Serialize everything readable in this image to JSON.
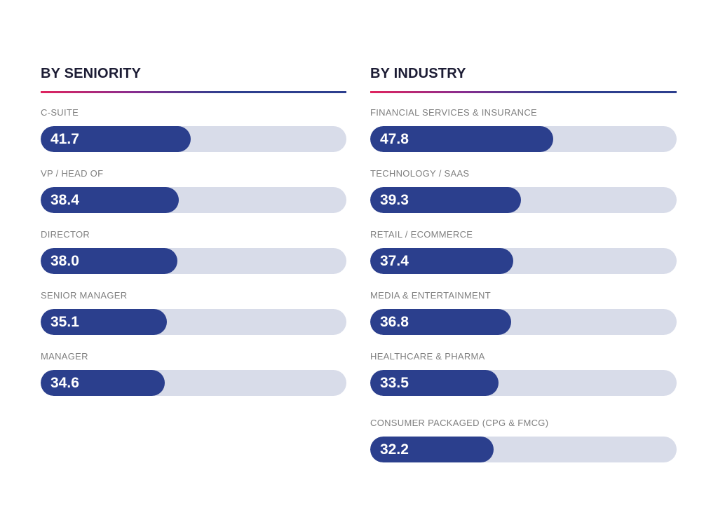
{
  "chart_data": [
    {
      "type": "bar",
      "orientation": "horizontal",
      "title": "BY SENIORITY",
      "categories": [
        "C-SUITE",
        "VP / HEAD OF",
        "DIRECTOR",
        "SENIOR MANAGER",
        "MANAGER"
      ],
      "values": [
        41.7,
        38.4,
        38.0,
        35.1,
        34.6
      ],
      "value_labels": [
        "41.7",
        "38.4",
        "38.0",
        "35.1",
        "34.6"
      ],
      "xlim": [
        0,
        85
      ],
      "grid": false,
      "legend": "none"
    },
    {
      "type": "bar",
      "orientation": "horizontal",
      "title": "BY INDUSTRY",
      "categories": [
        "FINANCIAL SERVICES & INSURANCE",
        "TECHNOLOGY / SAAS",
        "RETAIL / ECOMMERCE",
        "MEDIA & ENTERTAINMENT",
        "HEALTHCARE & PHARMA",
        "CONSUMER PACKAGED (CPG & FMCG)"
      ],
      "values": [
        47.8,
        39.3,
        37.4,
        36.8,
        33.5,
        32.2
      ],
      "value_labels": [
        "47.8",
        "39.3",
        "37.4",
        "36.8",
        "33.5",
        "32.2"
      ],
      "xlim": [
        0,
        80
      ],
      "grid": false,
      "legend": "none"
    }
  ],
  "colors": {
    "bar_fill": "#2b3f8d",
    "track": "#d8dce9",
    "title": "#1d1d35",
    "label": "#808080",
    "rule_gradient_start": "#e0245e",
    "rule_gradient_end": "#2d3f8e"
  }
}
